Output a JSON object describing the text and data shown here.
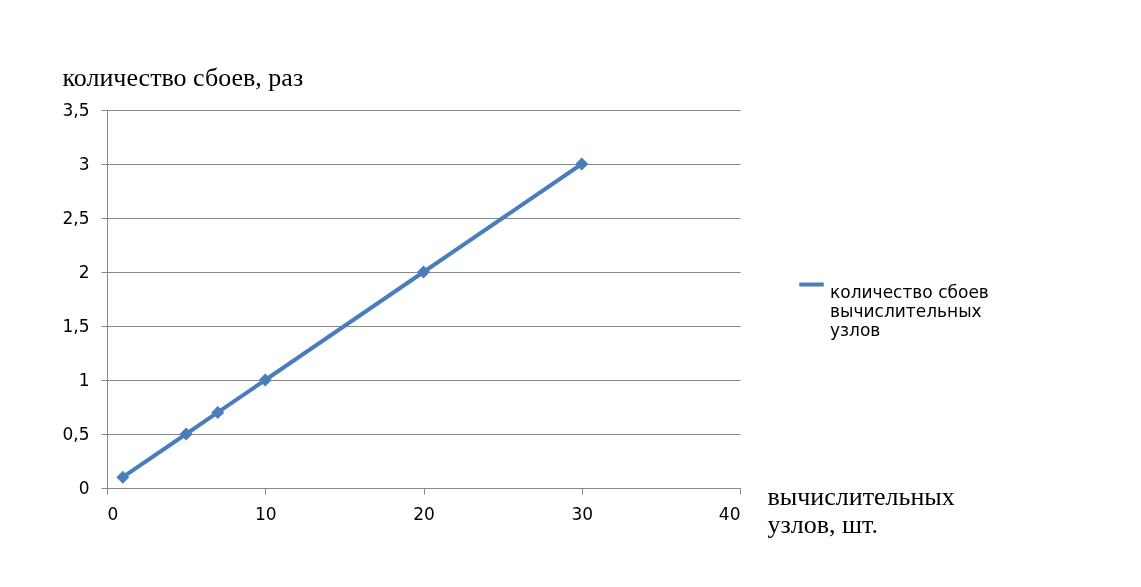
{
  "chart_data": {
    "type": "line",
    "xlabel": "вычислительных узлов, шт.",
    "ylabel": "количество сбоев, раз",
    "x": [
      1,
      5,
      7,
      10,
      20,
      30
    ],
    "series": [
      {
        "name": "количество сбоев вычислительных узлов",
        "color": "#4a7ebb",
        "values": [
          0.1,
          0.5,
          0.7,
          1,
          2,
          3
        ]
      }
    ],
    "xlim": [
      0,
      40
    ],
    "xticks": [
      0,
      10,
      20,
      30,
      40
    ],
    "ylim": [
      0,
      3.5
    ],
    "yticks": [
      0,
      {
        "value": 0.5,
        "label": "0,5"
      },
      1,
      {
        "value": 1.5,
        "label": "1,5"
      },
      2,
      {
        "value": 2.5,
        "label": "2,5"
      },
      3,
      {
        "value": 3.5,
        "label": "3,5"
      }
    ],
    "grid": "y",
    "legend": "right",
    "marker": "diamond",
    "line_style": "solid"
  }
}
